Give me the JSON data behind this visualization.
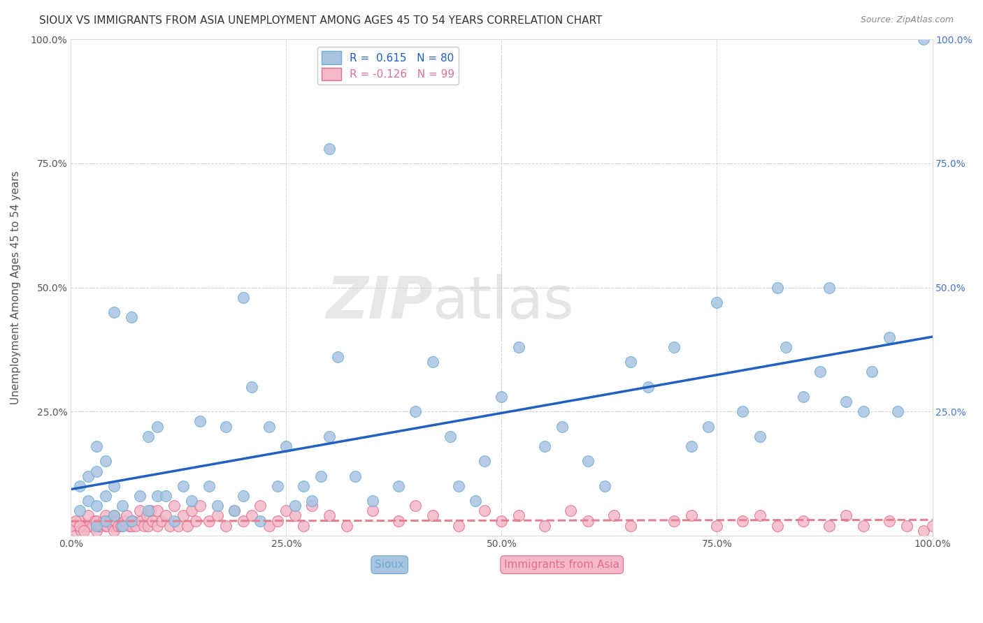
{
  "title": "SIOUX VS IMMIGRANTS FROM ASIA UNEMPLOYMENT AMONG AGES 45 TO 54 YEARS CORRELATION CHART",
  "source": "Source: ZipAtlas.com",
  "ylabel": "Unemployment Among Ages 45 to 54 years",
  "xlim": [
    0,
    1
  ],
  "ylim": [
    0,
    1
  ],
  "xticks": [
    0.0,
    0.25,
    0.5,
    0.75,
    1.0
  ],
  "xticklabels": [
    "0.0%",
    "25.0%",
    "50.0%",
    "75.0%",
    "100.0%"
  ],
  "yticks": [
    0.0,
    0.25,
    0.5,
    0.75,
    1.0
  ],
  "yticklabels": [
    "",
    "25.0%",
    "50.0%",
    "75.0%",
    "100.0%"
  ],
  "sioux_color": "#a8c4e0",
  "sioux_edge": "#6aaed6",
  "asia_color": "#f4b8c8",
  "asia_edge": "#e07090",
  "line_sioux_color": "#2060c0",
  "line_asia_color": "#e08090",
  "sioux_R": 0.615,
  "sioux_N": 80,
  "asia_R": -0.126,
  "asia_N": 99,
  "sioux_x": [
    0.01,
    0.01,
    0.02,
    0.02,
    0.03,
    0.03,
    0.03,
    0.04,
    0.04,
    0.04,
    0.05,
    0.05,
    0.06,
    0.06,
    0.07,
    0.08,
    0.09,
    0.09,
    0.1,
    0.1,
    0.11,
    0.12,
    0.13,
    0.14,
    0.15,
    0.16,
    0.17,
    0.18,
    0.19,
    0.2,
    0.21,
    0.22,
    0.23,
    0.24,
    0.25,
    0.26,
    0.27,
    0.28,
    0.29,
    0.3,
    0.31,
    0.33,
    0.35,
    0.38,
    0.4,
    0.42,
    0.44,
    0.45,
    0.47,
    0.48,
    0.5,
    0.52,
    0.55,
    0.57,
    0.6,
    0.62,
    0.65,
    0.67,
    0.7,
    0.72,
    0.74,
    0.75,
    0.78,
    0.8,
    0.82,
    0.83,
    0.85,
    0.87,
    0.88,
    0.9,
    0.92,
    0.93,
    0.95,
    0.96,
    0.99,
    0.03,
    0.05,
    0.07,
    0.2,
    0.3
  ],
  "sioux_y": [
    0.05,
    0.1,
    0.07,
    0.12,
    0.02,
    0.06,
    0.13,
    0.03,
    0.08,
    0.15,
    0.04,
    0.1,
    0.02,
    0.06,
    0.03,
    0.08,
    0.2,
    0.05,
    0.08,
    0.22,
    0.08,
    0.03,
    0.1,
    0.07,
    0.23,
    0.1,
    0.06,
    0.22,
    0.05,
    0.08,
    0.3,
    0.03,
    0.22,
    0.1,
    0.18,
    0.06,
    0.1,
    0.07,
    0.12,
    0.2,
    0.36,
    0.12,
    0.07,
    0.1,
    0.25,
    0.35,
    0.2,
    0.1,
    0.07,
    0.15,
    0.28,
    0.38,
    0.18,
    0.22,
    0.15,
    0.1,
    0.35,
    0.3,
    0.38,
    0.18,
    0.22,
    0.47,
    0.25,
    0.2,
    0.5,
    0.38,
    0.28,
    0.33,
    0.5,
    0.27,
    0.25,
    0.33,
    0.4,
    0.25,
    1.0,
    0.18,
    0.45,
    0.44,
    0.48,
    0.78
  ],
  "asia_x": [
    0.005,
    0.008,
    0.01,
    0.01,
    0.012,
    0.015,
    0.018,
    0.02,
    0.02,
    0.022,
    0.025,
    0.028,
    0.03,
    0.03,
    0.032,
    0.035,
    0.038,
    0.04,
    0.04,
    0.042,
    0.045,
    0.048,
    0.05,
    0.05,
    0.052,
    0.055,
    0.058,
    0.06,
    0.062,
    0.065,
    0.068,
    0.07,
    0.072,
    0.075,
    0.08,
    0.082,
    0.085,
    0.088,
    0.09,
    0.092,
    0.095,
    0.1,
    0.1,
    0.105,
    0.11,
    0.115,
    0.12,
    0.125,
    0.13,
    0.135,
    0.14,
    0.145,
    0.15,
    0.16,
    0.17,
    0.18,
    0.19,
    0.2,
    0.21,
    0.22,
    0.23,
    0.24,
    0.25,
    0.26,
    0.27,
    0.28,
    0.3,
    0.32,
    0.35,
    0.38,
    0.4,
    0.42,
    0.45,
    0.48,
    0.5,
    0.52,
    0.55,
    0.58,
    0.6,
    0.63,
    0.65,
    0.7,
    0.72,
    0.75,
    0.78,
    0.8,
    0.82,
    0.85,
    0.88,
    0.9,
    0.92,
    0.95,
    0.97,
    0.99,
    1.0,
    0.0,
    0.005,
    0.01,
    0.015
  ],
  "asia_y": [
    0.01,
    0.02,
    0.02,
    0.03,
    0.01,
    0.02,
    0.02,
    0.02,
    0.04,
    0.02,
    0.02,
    0.03,
    0.01,
    0.03,
    0.02,
    0.02,
    0.03,
    0.02,
    0.04,
    0.02,
    0.03,
    0.02,
    0.01,
    0.04,
    0.03,
    0.02,
    0.02,
    0.02,
    0.03,
    0.04,
    0.02,
    0.02,
    0.03,
    0.02,
    0.05,
    0.03,
    0.02,
    0.04,
    0.02,
    0.05,
    0.03,
    0.02,
    0.05,
    0.03,
    0.04,
    0.02,
    0.06,
    0.02,
    0.04,
    0.02,
    0.05,
    0.03,
    0.06,
    0.03,
    0.04,
    0.02,
    0.05,
    0.03,
    0.04,
    0.06,
    0.02,
    0.03,
    0.05,
    0.04,
    0.02,
    0.06,
    0.04,
    0.02,
    0.05,
    0.03,
    0.06,
    0.04,
    0.02,
    0.05,
    0.03,
    0.04,
    0.02,
    0.05,
    0.03,
    0.04,
    0.02,
    0.03,
    0.04,
    0.02,
    0.03,
    0.04,
    0.02,
    0.03,
    0.02,
    0.04,
    0.02,
    0.03,
    0.02,
    0.01,
    0.02,
    0.02,
    0.03,
    0.02,
    0.01
  ]
}
